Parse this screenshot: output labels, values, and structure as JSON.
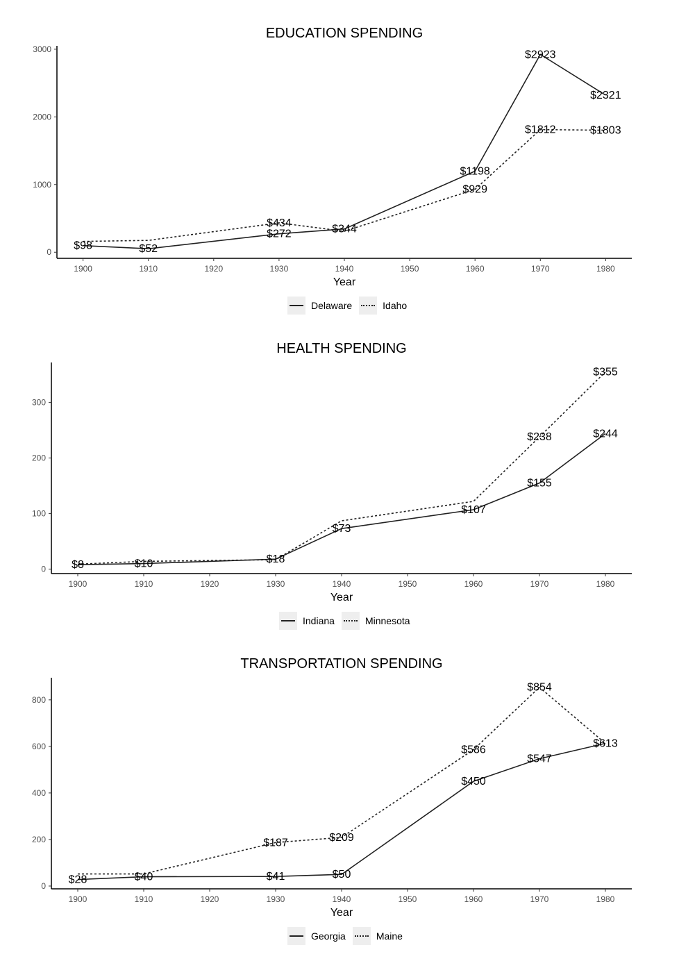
{
  "chart_data": [
    {
      "type": "line",
      "title": "EDUCATION SPENDING",
      "xlabel": "Year",
      "ylabel": "",
      "xlim": [
        1896,
        1984
      ],
      "ylim": [
        -90,
        3050
      ],
      "xticks": [
        1900,
        1910,
        1920,
        1930,
        1940,
        1950,
        1960,
        1970,
        1980
      ],
      "yticks": [
        0,
        1000,
        2000,
        3000
      ],
      "legend_position": "bottom",
      "series": [
        {
          "name": "Delaware",
          "style": "solid",
          "x": [
            1900,
            1910,
            1930,
            1940,
            1960,
            1970,
            1980
          ],
          "values": [
            98,
            52,
            272,
            344,
            1198,
            2923,
            2321
          ],
          "labels": [
            "$98",
            "$52",
            "$272",
            "$344",
            "$1198",
            "$2923",
            "$2321"
          ]
        },
        {
          "name": "Idaho",
          "style": "dotted",
          "x": [
            1900,
            1910,
            1930,
            1940,
            1960,
            1970,
            1980
          ],
          "values": [
            160,
            175,
            434,
            310,
            929,
            1812,
            1803
          ],
          "labels": [
            "",
            "",
            "$434",
            "",
            "$929",
            "$1812",
            "$1803"
          ]
        }
      ]
    },
    {
      "type": "line",
      "title": "HEALTH SPENDING",
      "xlabel": "Year",
      "ylabel": "",
      "xlim": [
        1896,
        1984
      ],
      "ylim": [
        -8,
        372
      ],
      "xticks": [
        1900,
        1910,
        1920,
        1930,
        1940,
        1950,
        1960,
        1970,
        1980
      ],
      "yticks": [
        0,
        100,
        200,
        300
      ],
      "legend_position": "bottom",
      "series": [
        {
          "name": "Indiana",
          "style": "solid",
          "x": [
            1900,
            1910,
            1930,
            1940,
            1960,
            1970,
            1980
          ],
          "values": [
            8,
            10,
            18,
            73,
            107,
            155,
            244
          ],
          "labels": [
            "$8",
            "$10",
            "$18",
            "$73",
            "$107",
            "$155",
            "$244"
          ]
        },
        {
          "name": "Minnesota",
          "style": "dotted",
          "x": [
            1900,
            1910,
            1930,
            1940,
            1960,
            1970,
            1980
          ],
          "values": [
            9,
            14,
            17,
            87,
            122,
            238,
            355
          ],
          "labels": [
            "",
            "",
            "",
            "",
            "",
            "$238",
            "$355"
          ]
        }
      ]
    },
    {
      "type": "line",
      "title": "TRANSPORTATION SPENDING",
      "xlabel": "Year",
      "ylabel": "",
      "xlim": [
        1896,
        1984
      ],
      "ylim": [
        -12,
        895
      ],
      "xticks": [
        1900,
        1910,
        1920,
        1930,
        1940,
        1950,
        1960,
        1970,
        1980
      ],
      "yticks": [
        0,
        200,
        400,
        600,
        800
      ],
      "legend_position": "bottom",
      "series": [
        {
          "name": "Georgia",
          "style": "solid",
          "x": [
            1900,
            1910,
            1930,
            1940,
            1960,
            1970,
            1980
          ],
          "values": [
            28,
            40,
            41,
            50,
            450,
            547,
            613
          ],
          "labels": [
            "$28",
            "$40",
            "$41",
            "$50",
            "$450",
            "$547",
            "$613"
          ]
        },
        {
          "name": "Maine",
          "style": "dotted",
          "x": [
            1900,
            1910,
            1930,
            1940,
            1960,
            1970,
            1980
          ],
          "values": [
            52,
            52,
            187,
            209,
            586,
            854,
            613
          ],
          "labels": [
            "",
            "",
            "$187",
            "$209",
            "$586",
            "$854",
            ""
          ]
        }
      ]
    }
  ]
}
